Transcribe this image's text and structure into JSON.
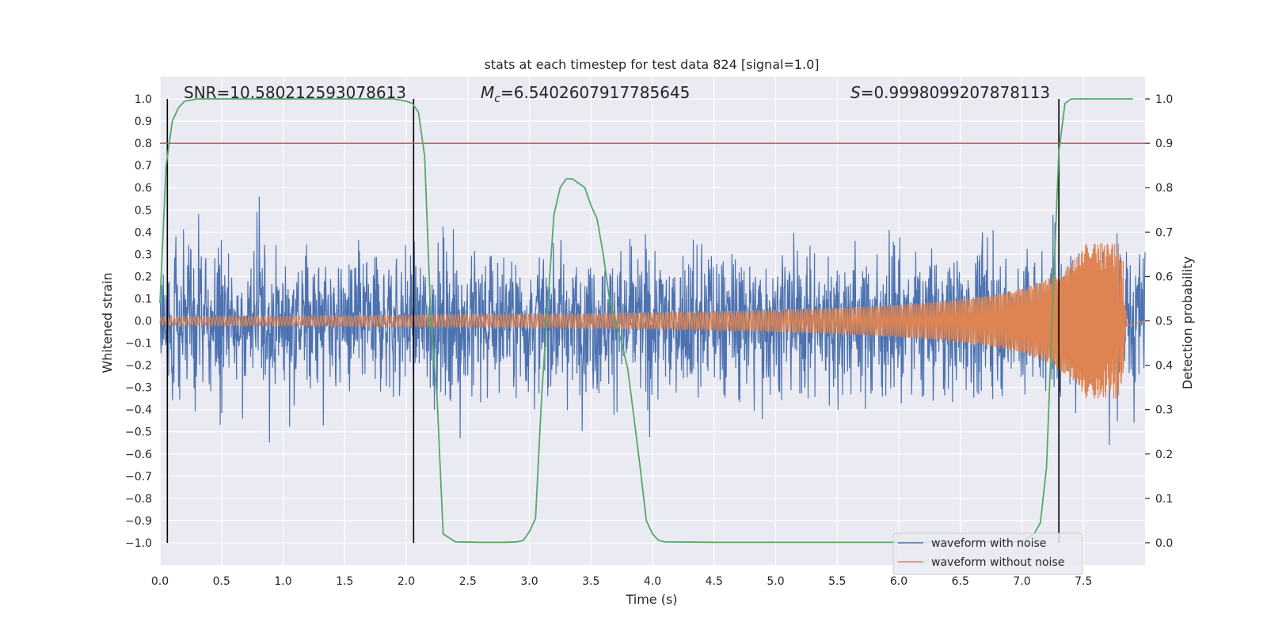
{
  "chart_data": {
    "type": "line",
    "title": "stats at each timestep for test data 824 [signal=1.0]",
    "xlabel": "Time (s)",
    "ylabel": "Whitened strain",
    "y2label": "Detection probability",
    "xlim": [
      0,
      8
    ],
    "ylim": [
      -1.1,
      1.1
    ],
    "y2lim": [
      -0.05,
      1.05
    ],
    "grid": true,
    "legend_position": "lower-right",
    "xticks": [
      0.0,
      0.5,
      1.0,
      1.5,
      2.0,
      2.5,
      3.0,
      3.5,
      4.0,
      4.5,
      5.0,
      5.5,
      6.0,
      6.5,
      7.0,
      7.5
    ],
    "xtick_labels": [
      "0.0",
      "0.5",
      "1.0",
      "1.5",
      "2.0",
      "2.5",
      "3.0",
      "3.5",
      "4.0",
      "4.5",
      "5.0",
      "5.5",
      "6.0",
      "6.5",
      "7.0",
      "7.5"
    ],
    "yticks": [
      -1.0,
      -0.9,
      -0.8,
      -0.7,
      -0.6,
      -0.5,
      -0.4,
      -0.3,
      -0.2,
      -0.1,
      0.0,
      0.1,
      0.2,
      0.3,
      0.4,
      0.5,
      0.6,
      0.7,
      0.8,
      0.9,
      1.0
    ],
    "ytick_labels": [
      "−1.0",
      "−0.9",
      "−0.8",
      "−0.7",
      "−0.6",
      "−0.5",
      "−0.4",
      "−0.3",
      "−0.2",
      "−0.1",
      "0.0",
      "0.1",
      "0.2",
      "0.3",
      "0.4",
      "0.5",
      "0.6",
      "0.7",
      "0.8",
      "0.9",
      "1.0"
    ],
    "y2ticks": [
      0.0,
      0.1,
      0.2,
      0.3,
      0.4,
      0.5,
      0.6,
      0.7,
      0.8,
      0.9,
      1.0
    ],
    "y2tick_labels": [
      "0.0",
      "0.1",
      "0.2",
      "0.3",
      "0.4",
      "0.5",
      "0.6",
      "0.7",
      "0.8",
      "0.9",
      "1.0"
    ],
    "annotations": {
      "snr": "SNR=10.580212593078613",
      "mc_symbol": "M",
      "mc_sub": "c",
      "mc_value": "=6.5402607917785645",
      "s_symbol": "S",
      "s_value": "=0.9998099207878113"
    },
    "threshold": {
      "y2": 0.9,
      "color": "#c44e52"
    },
    "vertical_markers_x": [
      0.06,
      2.06,
      7.3
    ],
    "series": [
      {
        "name": "waveform with noise",
        "color": "#4c72b0",
        "envelope_typical": 0.4,
        "envelope_max": 1.0
      },
      {
        "name": "waveform without noise",
        "color": "#dd8452",
        "amplitude_start": 0.02,
        "amplitude_peak": 0.35,
        "peak_x": 7.82,
        "end_x": 7.85
      },
      {
        "color": "#55a868",
        "x": [
          0.0,
          0.05,
          0.1,
          0.15,
          0.2,
          0.3,
          0.4,
          0.6,
          1.0,
          1.5,
          1.9,
          2.0,
          2.05,
          2.1,
          2.15,
          2.2,
          2.25,
          2.3,
          2.4,
          2.6,
          2.8,
          2.9,
          2.95,
          3.0,
          3.05,
          3.1,
          3.15,
          3.2,
          3.25,
          3.3,
          3.35,
          3.4,
          3.45,
          3.5,
          3.55,
          3.6,
          3.65,
          3.7,
          3.75,
          3.8,
          3.85,
          3.9,
          3.95,
          4.0,
          4.05,
          4.1,
          4.5,
          5.0,
          6.0,
          7.0,
          7.1,
          7.15,
          7.2,
          7.25,
          7.3,
          7.35,
          7.4,
          7.5,
          7.9
        ],
        "y2": [
          0.54,
          0.85,
          0.95,
          0.98,
          0.995,
          1.0,
          1.0,
          1.0,
          1.0,
          1.0,
          1.0,
          0.995,
          0.99,
          0.97,
          0.87,
          0.5,
          0.33,
          0.02,
          0.002,
          0.001,
          0.001,
          0.002,
          0.005,
          0.025,
          0.055,
          0.33,
          0.54,
          0.74,
          0.8,
          0.82,
          0.82,
          0.81,
          0.8,
          0.76,
          0.73,
          0.65,
          0.55,
          0.5,
          0.45,
          0.39,
          0.28,
          0.17,
          0.05,
          0.02,
          0.005,
          0.002,
          0.001,
          0.001,
          0.001,
          0.002,
          0.02,
          0.045,
          0.17,
          0.54,
          0.88,
          0.99,
          1.0,
          1.0,
          1.0
        ]
      }
    ]
  }
}
